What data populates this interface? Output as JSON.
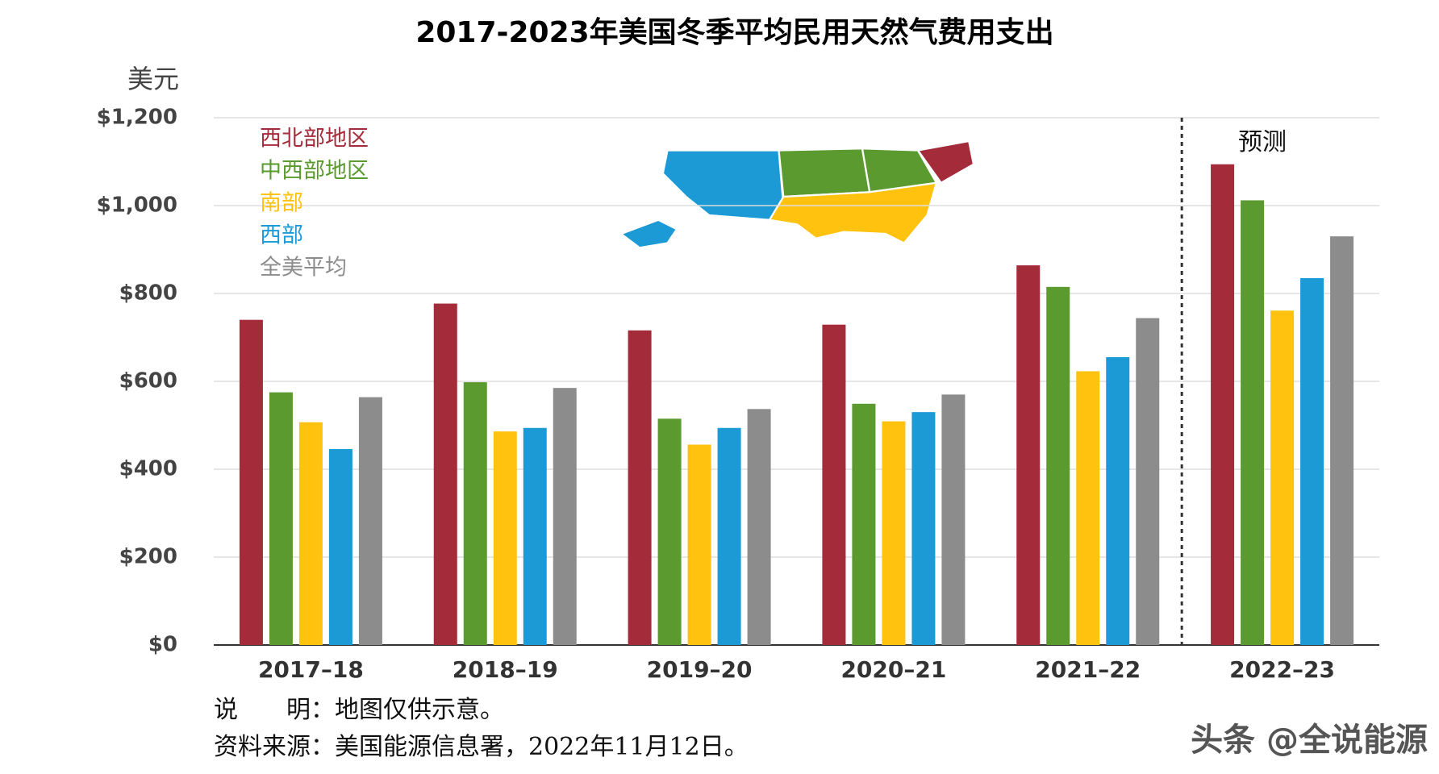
{
  "chart_data": {
    "type": "bar",
    "title": "2017-2023年美国冬季平均民用天然气费用支出",
    "y_label": "美元",
    "categories": [
      "2017–18",
      "2018–19",
      "2019–20",
      "2020–21",
      "2021–22",
      "2022–23"
    ],
    "series": [
      {
        "name": "西北部地区",
        "color": "#a32b3a",
        "values": [
          740,
          777,
          716,
          729,
          864,
          1094
        ]
      },
      {
        "name": "中西部地区",
        "color": "#5a9a2e",
        "values": [
          575,
          598,
          515,
          549,
          815,
          1012
        ]
      },
      {
        "name": "南部",
        "color": "#ffc20e",
        "values": [
          507,
          486,
          456,
          509,
          623,
          761
        ]
      },
      {
        "name": "西部",
        "color": "#1b9ad6",
        "values": [
          446,
          494,
          494,
          530,
          655,
          835
        ]
      },
      {
        "name": "全美平均",
        "color": "#8c8c8c",
        "values": [
          564,
          585,
          537,
          570,
          744,
          930
        ]
      }
    ],
    "ylim": [
      0,
      1200
    ],
    "yticks": [
      {
        "value": 0,
        "label": "$0"
      },
      {
        "value": 200,
        "label": "$200"
      },
      {
        "value": 400,
        "label": "$400"
      },
      {
        "value": 600,
        "label": "$600"
      },
      {
        "value": 800,
        "label": "$800"
      },
      {
        "value": 1000,
        "label": "$1,000"
      },
      {
        "value": 1200,
        "label": "$1,200"
      }
    ],
    "grid": true,
    "annotation": "预测",
    "note": "说　　明：地图仅供示意。",
    "source": "资料来源：美国能源信息署，2022年11月12日。",
    "watermark": "头条 @全说能源"
  }
}
